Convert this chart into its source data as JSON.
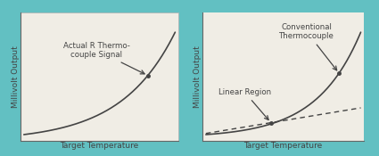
{
  "background_color": "#62c0c2",
  "panel_color": "#f0ede5",
  "panel_edge_color": "#b0b0b0",
  "axis_color": "#666666",
  "curve_color": "#444444",
  "text_color": "#444444",
  "left_ylabel": "Millivolt Output",
  "left_xlabel": "Target Temperature",
  "left_annotation": "Actual R Thermo-\ncouple Signal",
  "right_ylabel": "Millivolt Output",
  "right_xlabel": "Target Temperature",
  "right_annotation_conv": "Conventional\nThermocouple",
  "right_annotation_lin": "Linear Region",
  "figsize": [
    4.25,
    1.75
  ],
  "dpi": 100
}
